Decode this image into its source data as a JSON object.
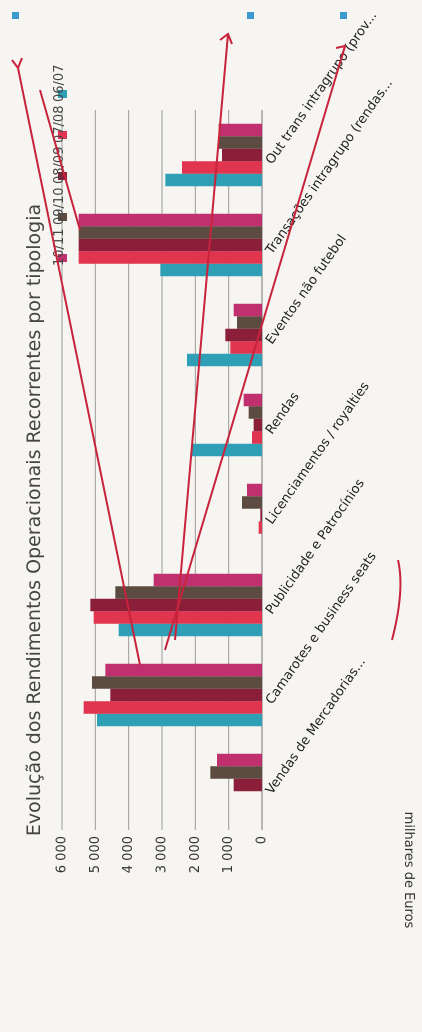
{
  "chart_data": {
    "type": "bar",
    "title": "Evolução dos Rendimentos Operacionais Recorrentes por tipologia",
    "xlabel": "",
    "ylabel": "milhares de Euros",
    "ylim": [
      0,
      6000
    ],
    "yticks": [
      "6 000",
      "5 000",
      "4 000",
      "3 000",
      "2 000",
      "1 000",
      "0"
    ],
    "grid": true,
    "legend_position": "right",
    "categories": [
      "Vendas de Mercadorias...",
      "Camarotes e business seats",
      "Publicidade e Patrocínios",
      "Licenciamentos / royalties",
      "Rendas",
      "Eventos não futebol",
      "Transações intragrupo (rendas...",
      "Out trans intragrupo (prov..."
    ],
    "series": [
      {
        "name": "06/07",
        "color": "#2e9fb5",
        "values": [
          0,
          4950,
          4300,
          0,
          2100,
          2250,
          3050,
          2900
        ]
      },
      {
        "name": "07/08",
        "color": "#e0344f",
        "values": [
          0,
          5350,
          5050,
          100,
          300,
          950,
          5500,
          2400
        ]
      },
      {
        "name": "08/09",
        "color": "#8b1f3a",
        "values": [
          850,
          4550,
          5150,
          50,
          250,
          1100,
          5500,
          1200
        ]
      },
      {
        "name": "09/10",
        "color": "#5c4b40",
        "values": [
          1550,
          5100,
          4400,
          600,
          400,
          750,
          5500,
          1300
        ]
      },
      {
        "name": "10/11",
        "color": "#c0306e",
        "values": [
          1350,
          4700,
          3250,
          450,
          550,
          850,
          5500,
          1300
        ]
      }
    ]
  }
}
